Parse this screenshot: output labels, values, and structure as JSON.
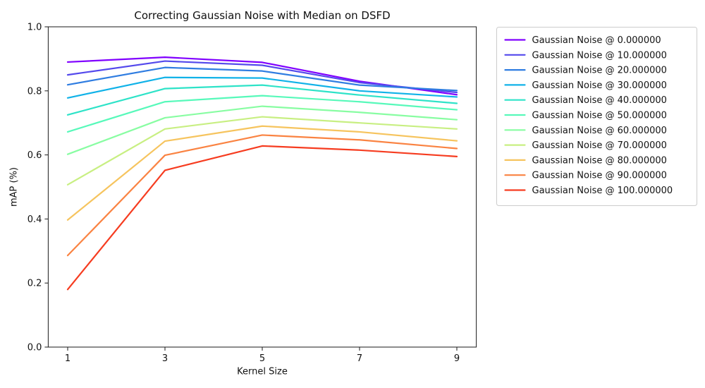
{
  "chart_data": {
    "type": "line",
    "title": "Correcting Gaussian Noise with Median on DSFD",
    "xlabel": "Kernel Size",
    "ylabel": "mAP (%)",
    "x": [
      1,
      3,
      5,
      7,
      9
    ],
    "xticks": [
      1,
      3,
      5,
      7,
      9
    ],
    "yticks": [
      0.0,
      0.2,
      0.4,
      0.6,
      0.8,
      1.0
    ],
    "xlim": [
      0.6,
      9.4
    ],
    "ylim": [
      0.0,
      1.0
    ],
    "grid": false,
    "legend_position": "outside-right",
    "axis_color": "#1a1a1a",
    "legend_border_color": "#cccccc",
    "series": [
      {
        "name": "Gaussian Noise @ 0.000000",
        "color": "#8000ff",
        "values": [
          0.89,
          0.905,
          0.889,
          0.83,
          0.788
        ]
      },
      {
        "name": "Gaussian Noise @ 10.000000",
        "color": "#5449ec",
        "values": [
          0.85,
          0.893,
          0.88,
          0.826,
          0.795
        ]
      },
      {
        "name": "Gaussian Noise @ 20.000000",
        "color": "#2f7de1",
        "values": [
          0.819,
          0.873,
          0.862,
          0.818,
          0.801
        ]
      },
      {
        "name": "Gaussian Noise @ 30.000000",
        "color": "#10b2e8",
        "values": [
          0.778,
          0.842,
          0.84,
          0.8,
          0.781
        ]
      },
      {
        "name": "Gaussian Noise @ 40.000000",
        "color": "#2ee3c8",
        "values": [
          0.725,
          0.807,
          0.818,
          0.787,
          0.761
        ]
      },
      {
        "name": "Gaussian Noise @ 50.000000",
        "color": "#57f9ba",
        "values": [
          0.672,
          0.766,
          0.785,
          0.766,
          0.741
        ]
      },
      {
        "name": "Gaussian Noise @ 60.000000",
        "color": "#88fda2",
        "values": [
          0.602,
          0.716,
          0.752,
          0.733,
          0.71
        ]
      },
      {
        "name": "Gaussian Noise @ 70.000000",
        "color": "#c8ef82",
        "values": [
          0.507,
          0.681,
          0.719,
          0.7,
          0.681
        ]
      },
      {
        "name": "Gaussian Noise @ 80.000000",
        "color": "#f6c45e",
        "values": [
          0.397,
          0.643,
          0.69,
          0.672,
          0.644
        ]
      },
      {
        "name": "Gaussian Noise @ 90.000000",
        "color": "#fa8342",
        "values": [
          0.286,
          0.599,
          0.662,
          0.647,
          0.62
        ]
      },
      {
        "name": "Gaussian Noise @ 100.000000",
        "color": "#f63c20",
        "values": [
          0.18,
          0.552,
          0.628,
          0.615,
          0.595
        ]
      }
    ]
  },
  "layout": {
    "tick_label_y_format_decimals": 1
  }
}
